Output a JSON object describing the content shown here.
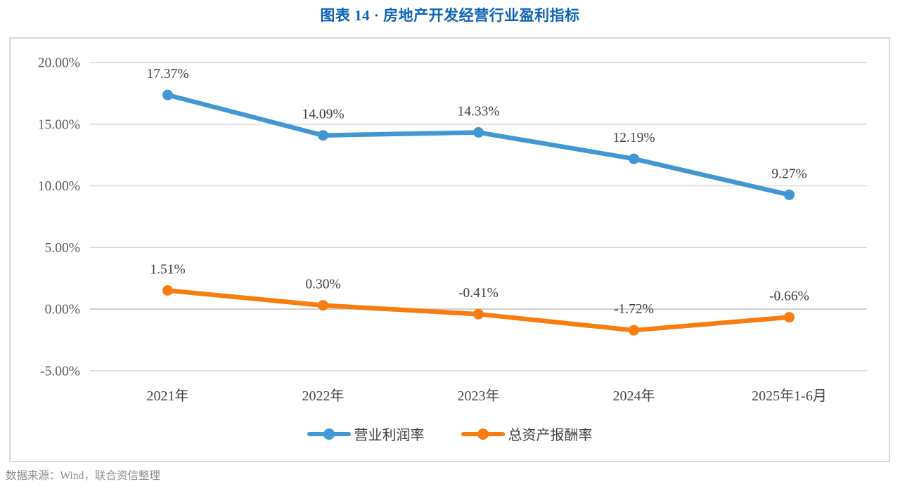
{
  "title": "图表 14 · 房地产开发经营行业盈利指标",
  "source_note": "数据来源：Wind，联合资信整理",
  "colors": {
    "title_text": "#0D62B4",
    "gridline": "#D9D9D9",
    "zero_axis_line": "#BFBFBF",
    "chart_border": "#D9D9D9",
    "tick_text": "#595959",
    "data_label_text": "#3F3F3F",
    "x_label_text": "#454545",
    "source_text": "#8C8C8C"
  },
  "chart_data": {
    "type": "line",
    "title": "图表 14 · 房地产开发经营行业盈利指标",
    "categories": [
      "2021年",
      "2022年",
      "2023年",
      "2024年",
      "2025年1-6月"
    ],
    "series": [
      {
        "name": "营业利润率",
        "color": "#4297D3",
        "values": [
          17.37,
          14.09,
          14.33,
          12.19,
          9.27
        ],
        "data_labels": [
          "17.37%",
          "14.09%",
          "14.33%",
          "12.19%",
          "9.27%"
        ]
      },
      {
        "name": "总资产报酬率",
        "color": "#F97C10",
        "values": [
          1.51,
          0.3,
          -0.41,
          -1.72,
          -0.66
        ],
        "data_labels": [
          "1.51%",
          "0.30%",
          "-0.41%",
          "-1.72%",
          "-0.66%"
        ]
      }
    ],
    "y_axis": {
      "ticks": [
        {
          "label": "20.00%",
          "value": 20
        },
        {
          "label": "15.00%",
          "value": 15
        },
        {
          "label": "10.00%",
          "value": 10
        },
        {
          "label": "5.00%",
          "value": 5
        },
        {
          "label": "0.00%",
          "value": 0
        },
        {
          "label": "-5.00%",
          "value": -5
        }
      ],
      "ylim": [
        -5,
        20
      ]
    },
    "grid": true,
    "legend_position": "bottom",
    "xlabel": "",
    "ylabel": ""
  }
}
